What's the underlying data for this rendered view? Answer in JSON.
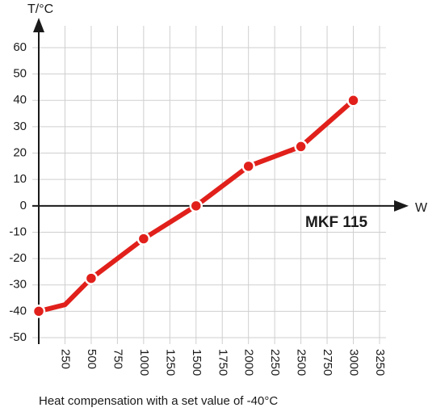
{
  "chart_data": {
    "type": "line",
    "ylabel": "T/°C",
    "xlabel": "W",
    "annotation": "MKF 115",
    "caption": "Heat compensation with a set value of -40°C",
    "xlim": [
      0,
      3250
    ],
    "ylim": [
      -50,
      60
    ],
    "x_ticks": [
      "250",
      "500",
      "750",
      "1000",
      "1250",
      "1500",
      "1750",
      "2000",
      "2250",
      "2500",
      "2750",
      "3000",
      "3250"
    ],
    "y_ticks": [
      "60",
      "50",
      "40",
      "30",
      "20",
      "10",
      "0",
      "-10",
      "-20",
      "-30",
      "-40",
      "-50"
    ],
    "grid": true,
    "series": [
      {
        "color": "#e1201b",
        "points": [
          {
            "x": 0,
            "y": -40,
            "marker": true
          },
          {
            "x": 250,
            "y": -37.5,
            "marker": false
          },
          {
            "x": 500,
            "y": -27.5,
            "marker": true
          },
          {
            "x": 1000,
            "y": -12.5,
            "marker": true
          },
          {
            "x": 1500,
            "y": 0,
            "marker": true
          },
          {
            "x": 2000,
            "y": 15,
            "marker": true
          },
          {
            "x": 2500,
            "y": 22.5,
            "marker": true
          },
          {
            "x": 3000,
            "y": 40,
            "marker": true
          }
        ]
      }
    ]
  }
}
